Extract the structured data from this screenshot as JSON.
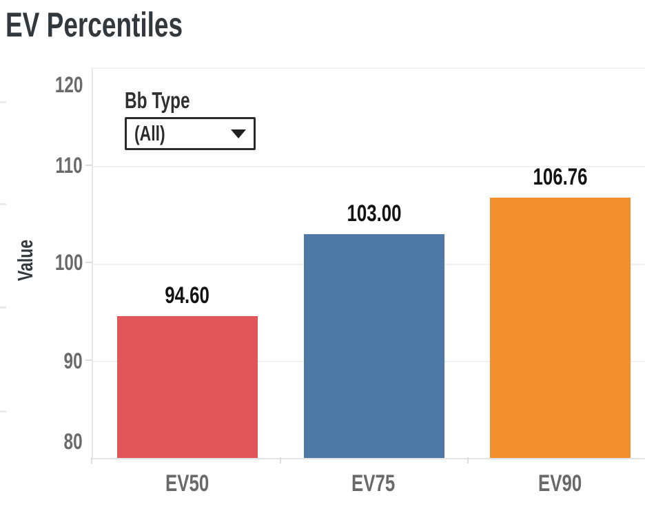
{
  "title": "EV Percentiles",
  "filter": {
    "label": "Bb Type",
    "value": "(All)",
    "icon": "caret-down-icon"
  },
  "axis": {
    "y_title": "Value",
    "y_ticks": [
      "120",
      "110",
      "100",
      "90",
      "80"
    ]
  },
  "chart_data": {
    "type": "bar",
    "title": "EV Percentiles",
    "categories": [
      "EV50",
      "EV75",
      "EV90"
    ],
    "values": [
      94.6,
      103.0,
      106.76
    ],
    "value_labels": [
      "94.60",
      "103.00",
      "106.76"
    ],
    "colors": [
      "#e15759",
      "#4e79a7",
      "#f28e2b"
    ],
    "xlabel": "",
    "ylabel": "Value",
    "ylim": [
      80,
      120
    ],
    "yticks": [
      80,
      90,
      100,
      110,
      120
    ],
    "gridlines": [
      110,
      100,
      90
    ],
    "grid": true,
    "legend": false
  }
}
